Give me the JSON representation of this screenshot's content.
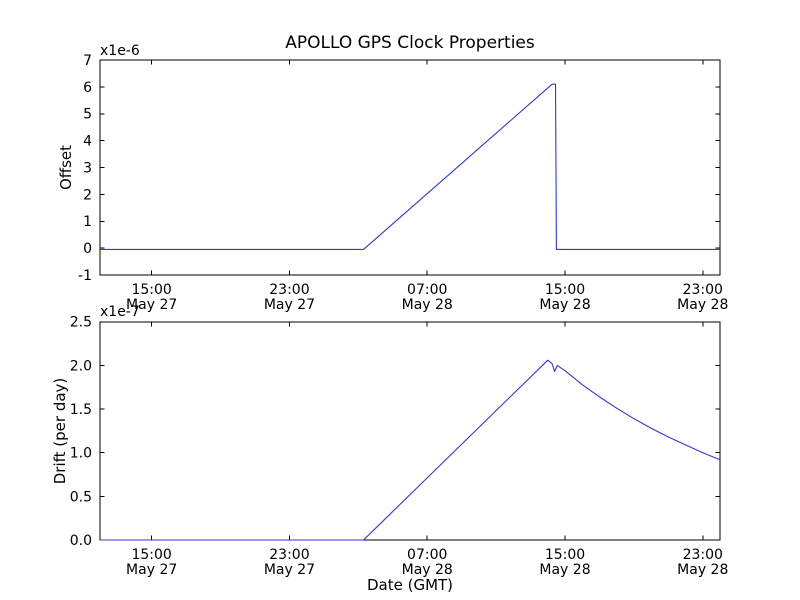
{
  "figure": {
    "background": "#ffffff",
    "frame_color": "#000000",
    "line_color": "#3535e0"
  },
  "chart_data": [
    {
      "type": "line",
      "title": "APOLLO GPS Clock Properties",
      "ylabel": "Offset",
      "offset_label": "x1e-6",
      "ylim": [
        -1,
        7
      ],
      "yticks": [
        -1,
        0,
        1,
        2,
        3,
        4,
        5,
        6,
        7
      ],
      "ytick_labels": [
        "-1",
        "0",
        "1",
        "2",
        "3",
        "4",
        "5",
        "6",
        "7"
      ],
      "x_unit": "hours from May 27 12:00 GMT",
      "xlim": [
        0,
        36
      ],
      "xticks": [
        3,
        11,
        19,
        27,
        35
      ],
      "xtick_labels": [
        [
          "15:00",
          "May 27"
        ],
        [
          "23:00",
          "May 27"
        ],
        [
          "07:00",
          "May 28"
        ],
        [
          "15:00",
          "May 28"
        ],
        [
          "23:00",
          "May 28"
        ]
      ],
      "grid": false,
      "legend": false,
      "series": [
        {
          "name": "offset",
          "color": "#3535e0",
          "points": [
            [
              0,
              -0.05
            ],
            [
              15.3,
              -0.05
            ],
            [
              26.25,
              6.1
            ],
            [
              26.45,
              6.1
            ],
            [
              26.5,
              -0.05
            ],
            [
              36,
              -0.05
            ]
          ]
        }
      ]
    },
    {
      "type": "line",
      "ylabel": "Drift (per day)",
      "xlabel": "Date (GMT)",
      "offset_label": "x1e-7",
      "ylim": [
        0,
        2.5
      ],
      "yticks": [
        0,
        0.5,
        1,
        1.5,
        2,
        2.5
      ],
      "ytick_labels": [
        "0.0",
        "0.5",
        "1.0",
        "1.5",
        "2.0",
        "2.5"
      ],
      "x_unit": "hours from May 27 12:00 GMT",
      "xlim": [
        0,
        36
      ],
      "xticks": [
        3,
        11,
        19,
        27,
        35
      ],
      "xtick_labels": [
        [
          "15:00",
          "May 27"
        ],
        [
          "23:00",
          "May 27"
        ],
        [
          "07:00",
          "May 28"
        ],
        [
          "15:00",
          "May 28"
        ],
        [
          "23:00",
          "May 28"
        ]
      ],
      "grid": false,
      "legend": false,
      "series": [
        {
          "name": "drift",
          "color": "#3535e0",
          "points": [
            [
              0,
              0
            ],
            [
              15.3,
              0
            ],
            [
              26.0,
              2.06
            ],
            [
              26.25,
              2.02
            ],
            [
              26.4,
              1.93
            ],
            [
              26.55,
              2.0
            ],
            [
              27,
              1.94
            ],
            [
              28,
              1.78
            ],
            [
              29,
              1.64
            ],
            [
              30,
              1.51
            ],
            [
              31,
              1.39
            ],
            [
              32,
              1.28
            ],
            [
              33,
              1.18
            ],
            [
              34,
              1.09
            ],
            [
              35,
              1.0
            ],
            [
              36,
              0.92
            ]
          ]
        }
      ]
    }
  ]
}
